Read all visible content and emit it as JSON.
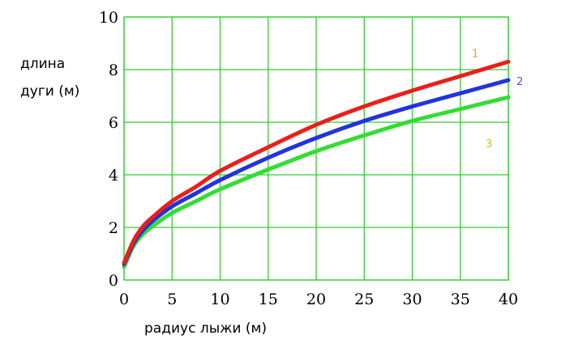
{
  "chart_data": {
    "type": "line",
    "xlabel": "радиус лыжи (м)",
    "ylabel_lines": [
      "длина",
      "дуги (м)"
    ],
    "xlim": [
      0,
      40
    ],
    "ylim": [
      0,
      10
    ],
    "x_ticks": [
      "0",
      "5",
      "10",
      "15",
      "20",
      "25",
      "30",
      "35",
      "40"
    ],
    "y_ticks": [
      "0",
      "2",
      "4",
      "6",
      "8",
      "10"
    ],
    "grid": true,
    "grid_color": "#33cc33",
    "series": [
      {
        "name": "1",
        "color": "#e8201c",
        "label_color": "#f39a2c",
        "x": [
          0,
          1,
          2,
          3,
          5,
          7.5,
          10,
          15,
          20,
          25,
          30,
          35,
          40
        ],
        "y": [
          0.65,
          1.5,
          2.05,
          2.4,
          3.0,
          3.55,
          4.15,
          5.05,
          5.9,
          6.6,
          7.2,
          7.75,
          8.3
        ]
      },
      {
        "name": "2",
        "color": "#2233dd",
        "label_color": "#3b5bdb",
        "x": [
          0,
          1,
          2,
          3,
          5,
          7.5,
          10,
          15,
          20,
          25,
          30,
          35,
          40
        ],
        "y": [
          0.6,
          1.4,
          1.9,
          2.25,
          2.8,
          3.3,
          3.8,
          4.65,
          5.4,
          6.05,
          6.6,
          7.1,
          7.6
        ]
      },
      {
        "name": "3",
        "color": "#33dd33",
        "label_color": "#b5cc2a",
        "x": [
          0,
          1,
          2,
          3,
          5,
          7.5,
          10,
          15,
          20,
          25,
          30,
          35,
          40
        ],
        "y": [
          0.5,
          1.3,
          1.75,
          2.05,
          2.55,
          3.0,
          3.45,
          4.2,
          4.9,
          5.5,
          6.05,
          6.5,
          6.95
        ]
      }
    ]
  }
}
